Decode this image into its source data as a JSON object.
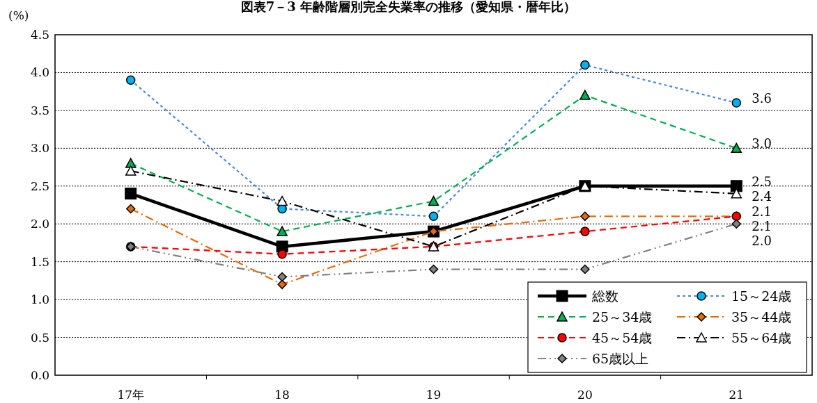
{
  "chart_data": {
    "type": "line",
    "title": "図表7－3 年齢階層別完全失業率の推移（愛知県・暦年比）",
    "ylabel": "(%)",
    "categories": [
      "17年",
      "18",
      "19",
      "20",
      "21"
    ],
    "ylim": [
      0,
      4.5
    ],
    "yticks": [
      {
        "value": 0,
        "label": "0.0"
      },
      {
        "value": 0.5,
        "label": "0.5"
      },
      {
        "value": 1,
        "label": "1.0"
      },
      {
        "value": 1.5,
        "label": "1.5"
      },
      {
        "value": 2,
        "label": "2.0"
      },
      {
        "value": 2.5,
        "label": "2.5"
      },
      {
        "value": 3,
        "label": "3.0"
      },
      {
        "value": 3.5,
        "label": "3.5"
      },
      {
        "value": 4,
        "label": "4.0"
      },
      {
        "value": 4.5,
        "label": "4.5"
      }
    ],
    "grid": "y",
    "legend": "bottom right",
    "series": [
      {
        "name": "総数",
        "color": "#000000",
        "values": [
          2.4,
          1.7,
          1.9,
          2.5,
          2.5
        ],
        "marker": "square",
        "line_style": "solid",
        "value_labels": [
          null,
          null,
          null,
          null,
          "2.5"
        ]
      },
      {
        "name": "15～24歳",
        "color": "#4f88d0",
        "colors": [
          "#00b0f0",
          "#00b0f0",
          "#00b0f0",
          "#00b0f0",
          "#00b0f0"
        ],
        "values": [
          3.9,
          2.2,
          2.1,
          4.1,
          3.6
        ],
        "marker": "circle",
        "line_style": "dotted",
        "value_labels": [
          null,
          null,
          null,
          null,
          "3.6"
        ]
      },
      {
        "name": "25～34歳",
        "color": "#00b050",
        "values": [
          2.8,
          1.9,
          2.3,
          3.7,
          3.0
        ],
        "marker": "triangle",
        "line_style": "dashed",
        "value_labels": [
          null,
          null,
          null,
          null,
          "3.0"
        ]
      },
      {
        "name": "35～44歳",
        "color": "#e36c09",
        "values": [
          2.2,
          1.2,
          1.9,
          2.1,
          2.1
        ],
        "marker": "diamond",
        "line_style": "dashdot",
        "value_labels": [
          null,
          null,
          null,
          null,
          "2.1"
        ]
      },
      {
        "name": "45～54歳",
        "color": "#ff0000",
        "values": [
          1.7,
          1.6,
          1.7,
          1.9,
          2.1
        ],
        "marker": "circle",
        "line_style": "dashed",
        "value_labels": [
          null,
          null,
          null,
          null,
          "2.1"
        ]
      },
      {
        "name": "55～64歳",
        "color": "#000000",
        "colors": [
          "#ffffff",
          "#ffffff",
          "#ffffff",
          "#ffffff",
          "#ffffff"
        ],
        "values": [
          2.7,
          2.3,
          1.7,
          2.5,
          2.4
        ],
        "marker": "triangle",
        "line_style": "dashdot",
        "value_labels": [
          null,
          null,
          null,
          null,
          "2.4"
        ]
      },
      {
        "name": "65歳以上",
        "color": "#808080",
        "values": [
          1.7,
          1.3,
          1.4,
          1.4,
          2.0
        ],
        "marker": "diamond",
        "line_style": "dashdotdot",
        "value_labels": [
          null,
          null,
          null,
          null,
          "2.0"
        ]
      }
    ]
  }
}
